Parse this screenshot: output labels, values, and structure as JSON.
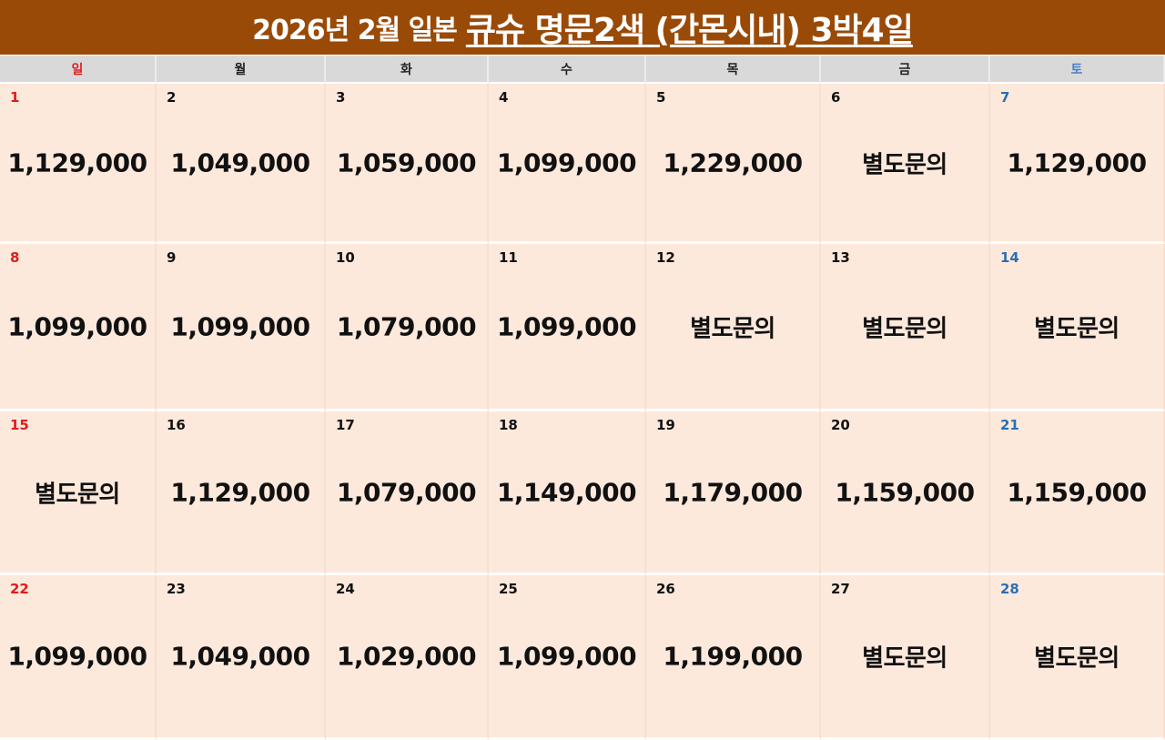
{
  "title": {
    "prefix": "2026년 2월 일본",
    "highlight": "큐슈 명문2색 (간몬시내) 3박4일"
  },
  "colors": {
    "title_bg": "#9a4a07",
    "weekday_bg": "#d9d9d9",
    "cell_bg": "#fde9dc",
    "sunday": "#e01b1b",
    "saturday": "#2b6fb3"
  },
  "weekdays": [
    "일",
    "월",
    "화",
    "수",
    "목",
    "금",
    "토"
  ],
  "weeks": [
    [
      {
        "day": "1",
        "price": "1,129,000"
      },
      {
        "day": "2",
        "price": "1,049,000"
      },
      {
        "day": "3",
        "price": "1,059,000"
      },
      {
        "day": "4",
        "price": "1,099,000"
      },
      {
        "day": "5",
        "price": "1,229,000"
      },
      {
        "day": "6",
        "price": "별도문의"
      },
      {
        "day": "7",
        "price": "1,129,000"
      }
    ],
    [
      {
        "day": "8",
        "price": "1,099,000"
      },
      {
        "day": "9",
        "price": "1,099,000"
      },
      {
        "day": "10",
        "price": "1,079,000"
      },
      {
        "day": "11",
        "price": "1,099,000"
      },
      {
        "day": "12",
        "price": "별도문의"
      },
      {
        "day": "13",
        "price": "별도문의"
      },
      {
        "day": "14",
        "price": "별도문의"
      }
    ],
    [
      {
        "day": "15",
        "price": "별도문의"
      },
      {
        "day": "16",
        "price": "1,129,000"
      },
      {
        "day": "17",
        "price": "1,079,000"
      },
      {
        "day": "18",
        "price": "1,149,000"
      },
      {
        "day": "19",
        "price": "1,179,000"
      },
      {
        "day": "20",
        "price": "1,159,000"
      },
      {
        "day": "21",
        "price": "1,159,000"
      }
    ],
    [
      {
        "day": "22",
        "price": "1,099,000"
      },
      {
        "day": "23",
        "price": "1,049,000"
      },
      {
        "day": "24",
        "price": "1,029,000"
      },
      {
        "day": "25",
        "price": "1,099,000"
      },
      {
        "day": "26",
        "price": "1,199,000"
      },
      {
        "day": "27",
        "price": "별도문의"
      },
      {
        "day": "28",
        "price": "별도문의"
      }
    ]
  ]
}
